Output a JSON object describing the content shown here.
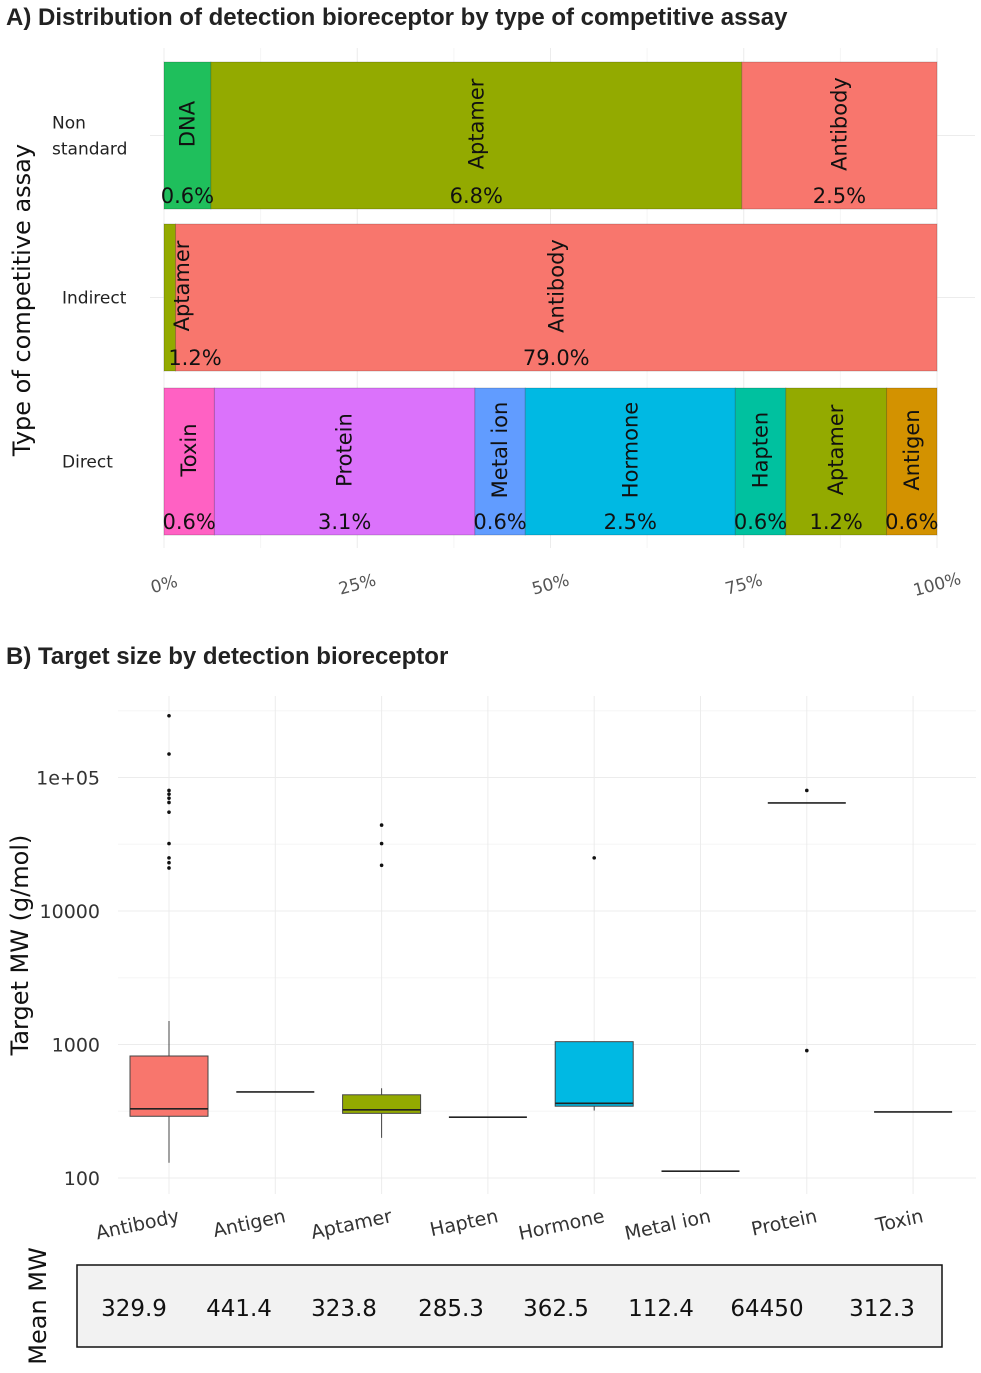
{
  "chart_data": [
    {
      "type": "bar",
      "subtype": "stacked-100-horizontal",
      "title": "A) Distribution  of detection bioreceptor by type of competitive assay",
      "ylabel": "Type of competitive assay",
      "xlabel": "",
      "x_ticks": [
        "0%",
        "25%",
        "50%",
        "75%",
        "100%"
      ],
      "rows": [
        {
          "category": "Non\nstandard",
          "category_lines": [
            "Non",
            "standard"
          ],
          "segments": [
            {
              "name": "DNA",
              "label": "0.6%",
              "share": 0.6,
              "color": "#1fbf5c"
            },
            {
              "name": "Aptamer",
              "label": "6.8%",
              "share": 6.8,
              "color": "#93aa00"
            },
            {
              "name": "Antibody",
              "label": "2.5%",
              "share": 2.5,
              "color": "#f8766d"
            }
          ]
        },
        {
          "category": "Indirect",
          "category_lines": [
            "Indirect"
          ],
          "segments": [
            {
              "name": "Aptamer",
              "label": "1.2%",
              "share": 1.2,
              "color": "#93aa00"
            },
            {
              "name": "Antibody",
              "label": "79.0%",
              "share": 79.0,
              "color": "#f8766d"
            }
          ]
        },
        {
          "category": "Direct",
          "category_lines": [
            "Direct"
          ],
          "segments": [
            {
              "name": "Toxin",
              "label": "0.6%",
              "share": 0.6,
              "color": "#ff61c3"
            },
            {
              "name": "Protein",
              "label": "3.1%",
              "share": 3.1,
              "color": "#db72fb"
            },
            {
              "name": "Metal ion",
              "label": "0.6%",
              "share": 0.6,
              "color": "#619cff"
            },
            {
              "name": "Hormone",
              "label": "2.5%",
              "share": 2.5,
              "color": "#00b9e3"
            },
            {
              "name": "Hapten",
              "label": "0.6%",
              "share": 0.6,
              "color": "#00c19f"
            },
            {
              "name": "Aptamer",
              "label": "1.2%",
              "share": 1.2,
              "color": "#93aa00"
            },
            {
              "name": "Antigen",
              "label": "0.6%",
              "share": 0.6,
              "color": "#d39200"
            }
          ]
        }
      ]
    },
    {
      "type": "box",
      "title": "B) Target size by detection bioreceptor",
      "ylabel": "Target MW (g/mol)",
      "yscale": "log10",
      "ylim": [
        80,
        300000
      ],
      "y_ticks": [
        100,
        1000,
        10000,
        100000
      ],
      "y_tick_labels": [
        "100",
        "1000",
        "10000",
        "1e+05"
      ],
      "categories": [
        "Antibody",
        "Antigen",
        "Aptamer",
        "Hapten",
        "Hormone",
        "Metal ion",
        "Protein",
        "Toxin"
      ],
      "boxes": [
        {
          "name": "Antibody",
          "color": "#f8766d",
          "lower_whisker": 130,
          "q1": 290,
          "median": 330,
          "q3": 820,
          "upper_whisker": 1500,
          "outliers": [
            21000,
            23000,
            25000,
            32000,
            55000,
            65000,
            70000,
            75000,
            80000,
            150000,
            290000
          ]
        },
        {
          "name": "Antigen",
          "color": "#d39200",
          "lower_whisker": 441.4,
          "q1": 441.4,
          "median": 441.4,
          "q3": 441.4,
          "upper_whisker": 441.4,
          "outliers": []
        },
        {
          "name": "Aptamer",
          "color": "#93aa00",
          "lower_whisker": 200,
          "q1": 305,
          "median": 324,
          "q3": 420,
          "upper_whisker": 470,
          "outliers": [
            22000,
            32000,
            44000
          ]
        },
        {
          "name": "Hapten",
          "color": "#00c19f",
          "lower_whisker": 285.3,
          "q1": 285.3,
          "median": 285.3,
          "q3": 285.3,
          "upper_whisker": 285.3,
          "outliers": []
        },
        {
          "name": "Hormone",
          "color": "#00b9e3",
          "lower_whisker": 320,
          "q1": 345,
          "median": 362.5,
          "q3": 1050,
          "upper_whisker": 1050,
          "outliers": [
            25000
          ]
        },
        {
          "name": "Metal ion",
          "color": "#619cff",
          "lower_whisker": 112.4,
          "q1": 112.4,
          "median": 112.4,
          "q3": 112.4,
          "upper_whisker": 112.4,
          "outliers": []
        },
        {
          "name": "Protein",
          "color": "#db72fb",
          "lower_whisker": 64450,
          "q1": 64450,
          "median": 64450,
          "q3": 64450,
          "upper_whisker": 64450,
          "outliers": [
            80000,
            900
          ]
        },
        {
          "name": "Toxin",
          "color": "#ff61c3",
          "lower_whisker": 312.3,
          "q1": 312.3,
          "median": 312.3,
          "q3": 312.3,
          "upper_whisker": 312.3,
          "outliers": []
        }
      ],
      "mean_label": "Mean MW",
      "means": [
        "329.9",
        "441.4",
        "323.8",
        "285.3",
        "362.5",
        "112.4",
        "64450",
        "312.3"
      ]
    }
  ]
}
